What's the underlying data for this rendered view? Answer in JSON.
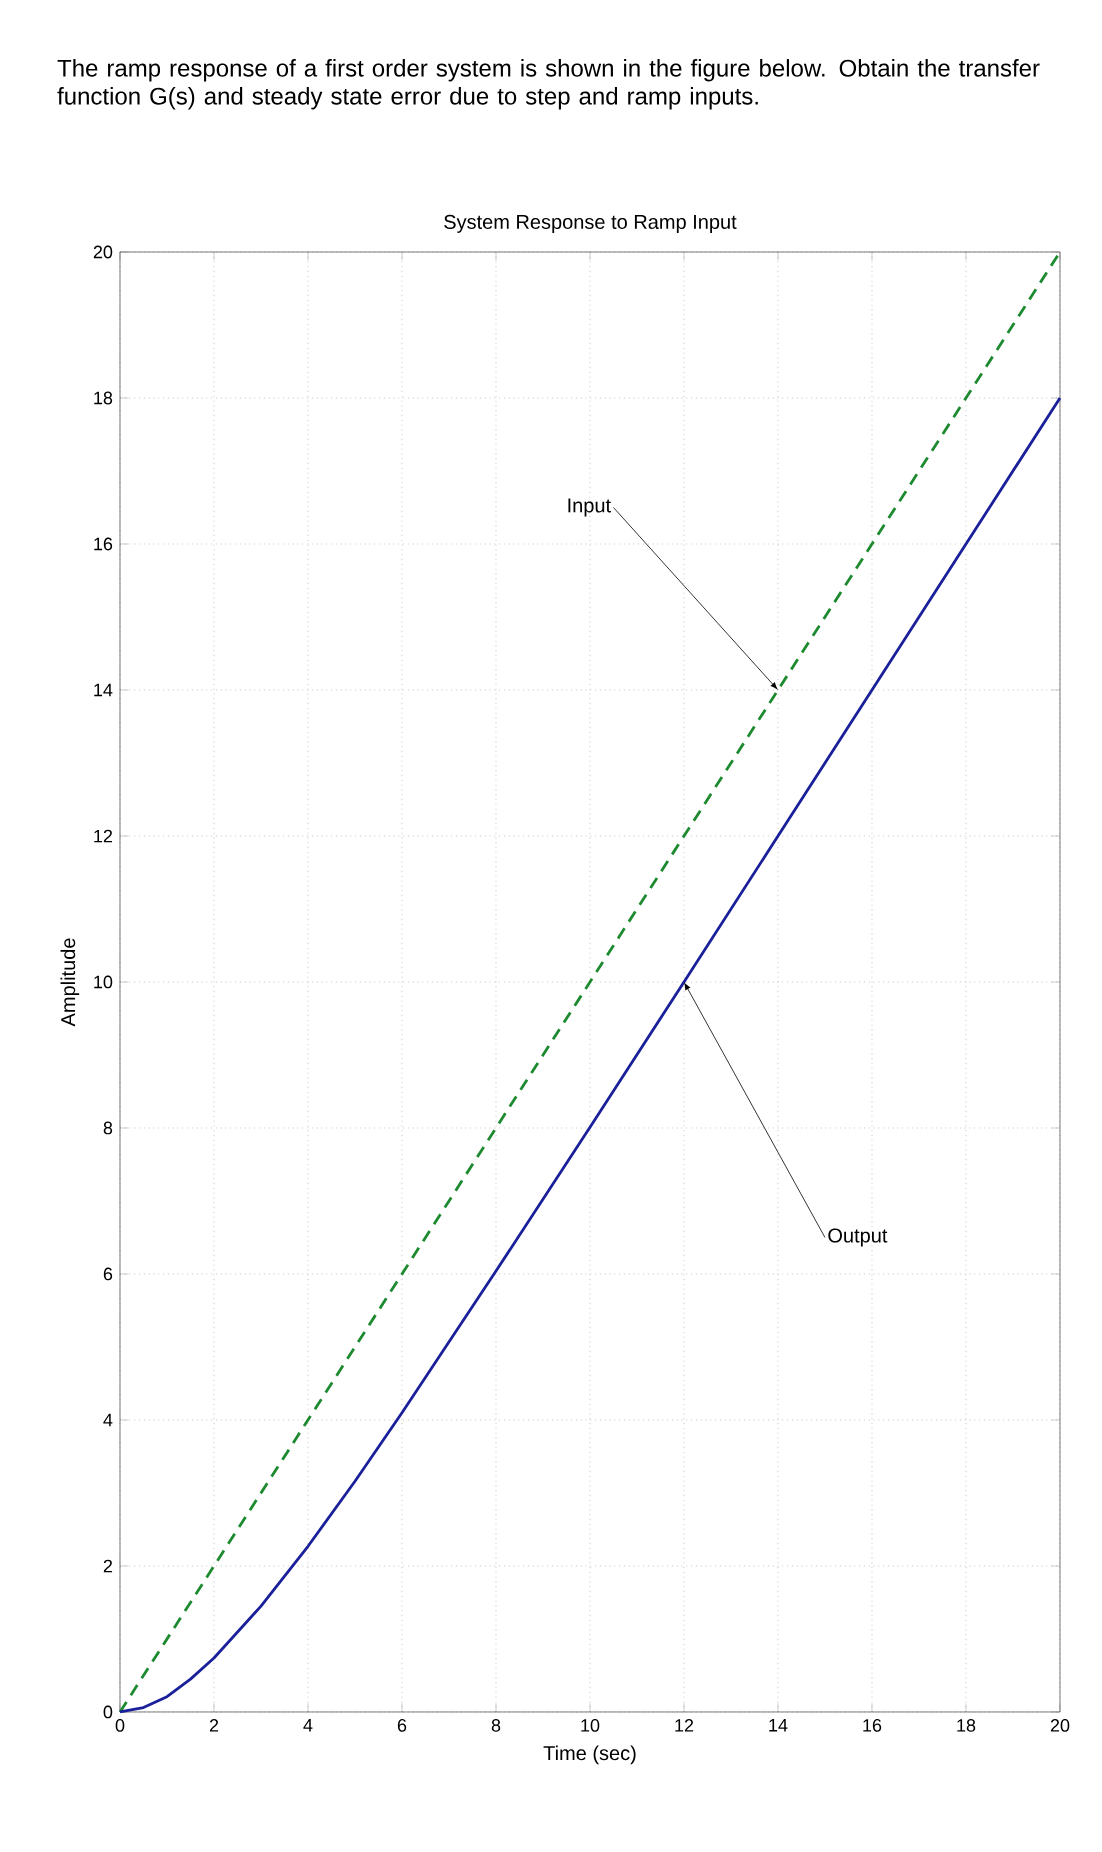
{
  "chart_data": {
    "type": "line",
    "title": "System Response to Ramp Input",
    "xlabel": "Time (sec)",
    "ylabel": "Amplitude",
    "annotations": [
      "The ramp response of a first order system is shown in the figure below. Obtain the transfer function G(s) and steady state error due to step and ramp inputs.",
      {
        "text": "Input",
        "x": 14,
        "y": 14
      },
      {
        "text": "Output",
        "x": 12,
        "y": 10
      }
    ],
    "xlim": [
      0,
      20
    ],
    "ylim": [
      0,
      20
    ],
    "xticks": [
      0,
      2,
      4,
      6,
      8,
      10,
      12,
      14,
      16,
      18,
      20
    ],
    "yticks": [
      0,
      2,
      4,
      6,
      8,
      10,
      12,
      14,
      16,
      18,
      20
    ],
    "grid": true,
    "marker": "none",
    "series": [
      {
        "color": "#1e8a30",
        "line_style": "dashed",
        "x": [
          0,
          20
        ],
        "values": [
          0,
          20
        ]
      },
      {
        "color": "#1a1f9a",
        "line_style": "solid",
        "x": [
          0,
          0.5,
          1,
          1.5,
          2,
          3,
          4,
          5,
          6,
          8,
          10,
          12,
          14,
          16,
          18,
          20
        ],
        "values": [
          0,
          0.06,
          0.21,
          0.45,
          0.74,
          1.45,
          2.27,
          3.16,
          4.1,
          6.04,
          8.01,
          10,
          12,
          14,
          16,
          18
        ]
      }
    ]
  }
}
